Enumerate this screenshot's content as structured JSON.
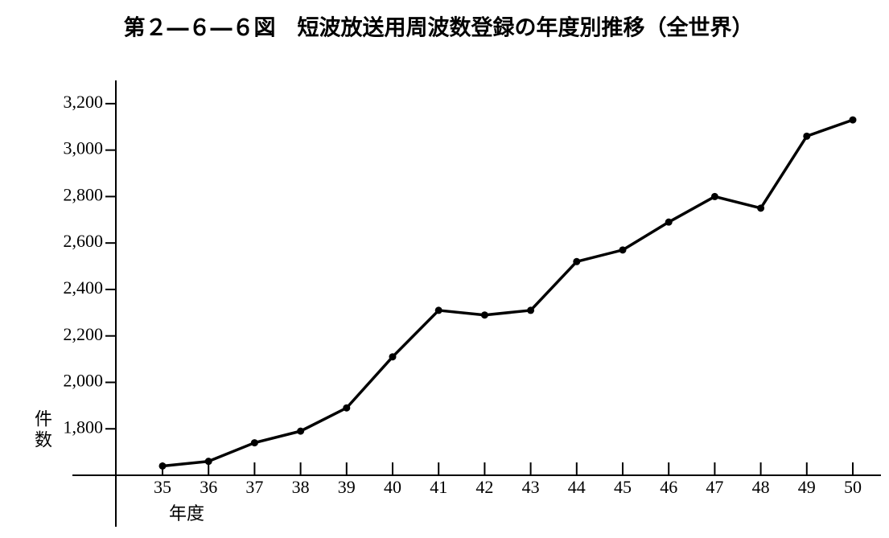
{
  "chart_data": {
    "type": "line",
    "title": "第２―６―６図　短波放送用周波数登録の年度別推移（全世界）",
    "y_label": "件数",
    "x_label": "年度",
    "categories": [
      "35",
      "36",
      "37",
      "38",
      "39",
      "40",
      "41",
      "42",
      "43",
      "44",
      "45",
      "46",
      "47",
      "48",
      "49",
      "50"
    ],
    "values": [
      1640,
      1660,
      1740,
      1790,
      1890,
      2110,
      2310,
      2290,
      2310,
      2520,
      2570,
      2690,
      2800,
      2750,
      3060,
      3130
    ],
    "color": "#000000",
    "ylim": [
      1600,
      3300
    ],
    "yticks": [
      {
        "value": 1800,
        "label": "1,800"
      },
      {
        "value": 2000,
        "label": "2,000"
      },
      {
        "value": 2200,
        "label": "2,200"
      },
      {
        "value": 2400,
        "label": "2,400"
      },
      {
        "value": 2600,
        "label": "2,600"
      },
      {
        "value": 2800,
        "label": "2,800"
      },
      {
        "value": 3000,
        "label": "3,000"
      },
      {
        "value": 3200,
        "label": "3,200"
      }
    ]
  }
}
